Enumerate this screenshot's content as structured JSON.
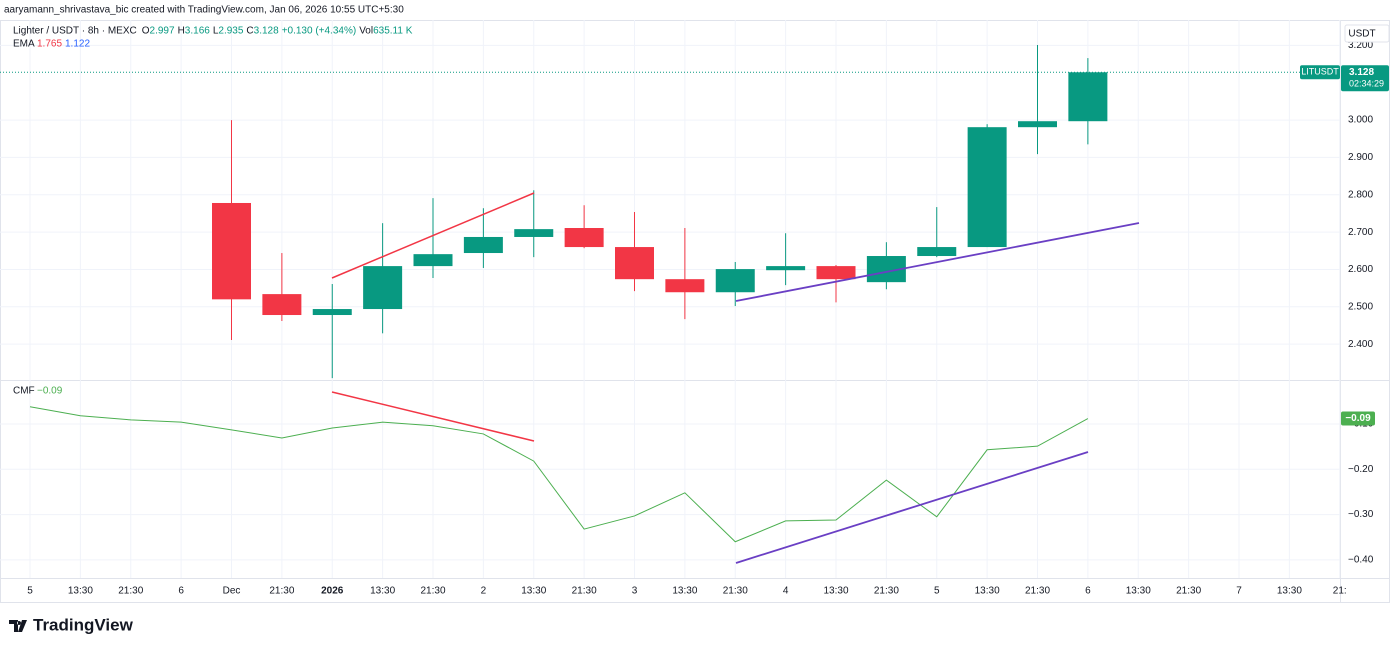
{
  "chart_data": {
    "type": "candlestick",
    "attribution": "aaryamann_shrivastava_bic created with TradingView.com, Jan 06, 2026 10:55 UTC+5:30",
    "legend": [
      {
        "label": "O",
        "value": "2.997"
      },
      {
        "label": "H",
        "value": "3.166"
      },
      {
        "label": "L",
        "value": "2.935"
      },
      {
        "label": "C",
        "value": "3.128"
      }
    ],
    "change": "+0.130 (+4.34%)",
    "volume": {
      "label": "Vol",
      "value": "635.11 K"
    },
    "ema": {
      "name": "EMA",
      "values": [
        "1.765",
        "1.122"
      ]
    },
    "currency": "USDT",
    "price_tag": {
      "symbol": "LITUSDT",
      "value": 3.128,
      "countdown": "02:34:29"
    },
    "brand": "TradingView",
    "categories": [
      "5",
      "13:30",
      "21:30",
      "6",
      "Dec",
      "21:30",
      "2026",
      "13:30",
      "21:30",
      "2",
      "13:30",
      "21:30",
      "3",
      "13:30",
      "21:30",
      "4",
      "13:30",
      "21:30",
      "5",
      "13:30",
      "21:30",
      "6",
      "13:30",
      "21:30",
      "7",
      "13:30",
      "21:"
    ],
    "ylim": [
      2.304,
      3.268
    ],
    "yticks": [
      {
        "value": 2.4,
        "label": "2.400"
      },
      {
        "value": 2.5,
        "label": "2.500"
      },
      {
        "value": 2.6,
        "label": "2.600"
      },
      {
        "value": 2.7,
        "label": "2.700"
      },
      {
        "value": 2.8,
        "label": "2.800"
      },
      {
        "value": 2.9,
        "label": "2.900"
      },
      {
        "value": 3.0,
        "label": "3.000"
      },
      {
        "value": 3.2,
        "label": "3.200"
      }
    ],
    "y2lim": [
      -0.44,
      -0.003
    ],
    "y2ticks": [
      {
        "value": -0.1,
        "label": "−0.10"
      },
      {
        "value": -0.2,
        "label": "−0.20"
      },
      {
        "value": -0.3,
        "label": "−0.30"
      },
      {
        "value": -0.4,
        "label": "−0.40"
      }
    ],
    "grid": true,
    "series": [
      {
        "name": "Lighter / USDT · 8h · MEXC",
        "type": "candlestick",
        "up_color": "#089981",
        "down_color": "#f23645",
        "open": [
          null,
          null,
          null,
          null,
          2.778,
          2.534,
          2.478,
          2.494,
          2.609,
          2.644,
          2.687,
          2.711,
          2.66,
          2.574,
          2.539,
          2.598,
          2.609,
          2.566,
          2.636,
          2.66,
          2.981,
          2.997,
          null,
          null,
          null,
          null,
          null
        ],
        "high": [
          null,
          null,
          null,
          null,
          3.0,
          2.644,
          2.561,
          2.724,
          2.791,
          2.764,
          2.812,
          2.772,
          2.754,
          2.711,
          2.62,
          2.697,
          2.612,
          2.673,
          2.767,
          2.989,
          3.201,
          3.166,
          null,
          null,
          null,
          null,
          null
        ],
        "low": [
          null,
          null,
          null,
          null,
          2.411,
          2.462,
          2.309,
          2.429,
          2.577,
          2.604,
          2.633,
          2.657,
          2.542,
          2.467,
          2.502,
          2.558,
          2.512,
          2.547,
          2.633,
          2.66,
          2.909,
          2.935,
          null,
          null,
          null,
          null,
          null
        ],
        "close": [
          null,
          null,
          null,
          null,
          2.52,
          2.478,
          2.494,
          2.609,
          2.641,
          2.687,
          2.708,
          2.66,
          2.574,
          2.539,
          2.601,
          2.609,
          2.574,
          2.636,
          2.66,
          2.981,
          2.997,
          3.128,
          null,
          null,
          null,
          null,
          null
        ]
      },
      {
        "name": "CMF",
        "type": "line",
        "axis": "y2",
        "color": "#4caf50",
        "values": [
          -0.062,
          -0.082,
          -0.091,
          -0.096,
          -0.113,
          -0.131,
          -0.109,
          -0.096,
          -0.104,
          -0.122,
          -0.182,
          -0.332,
          -0.303,
          -0.252,
          -0.36,
          -0.314,
          -0.312,
          -0.224,
          -0.305,
          -0.157,
          -0.149,
          -0.088,
          null,
          null,
          null,
          null,
          null
        ],
        "value_labels": [
          null,
          null,
          null,
          null,
          null,
          null,
          null,
          null,
          null,
          null,
          null,
          null,
          null,
          null,
          null,
          null,
          null,
          null,
          null,
          null,
          null,
          "−0.09",
          null,
          null,
          null,
          null,
          null
        ]
      }
    ]
  }
}
